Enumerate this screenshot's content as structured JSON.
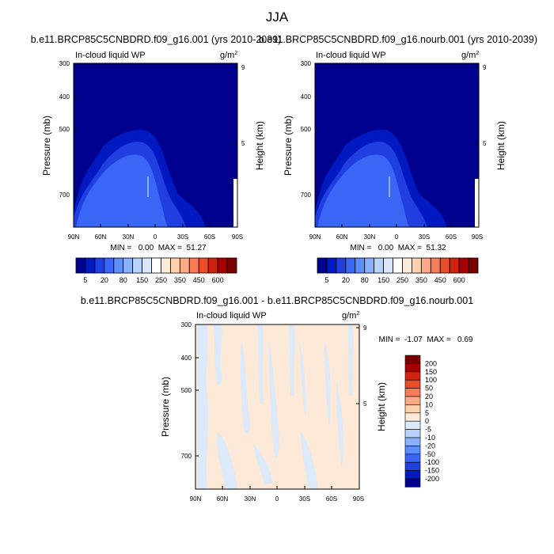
{
  "page_title": "JJA",
  "colors": {
    "blue_ramp": [
      "#00008f",
      "#0019c0",
      "#1f3fe0",
      "#3a66f5",
      "#5d8cfb",
      "#8bb0fb",
      "#b9d2fc",
      "#dbe8fb"
    ],
    "red_ramp": [
      "#fdebd9",
      "#fdd0b0",
      "#fcab86",
      "#f87c55",
      "#ec4d28",
      "#d12210",
      "#a60000",
      "#7a0000"
    ],
    "diff_pos": "#fde9d7",
    "diff_neg": "#dbe9f8"
  },
  "chart_data": [
    {
      "type": "heatmap",
      "title": "b.e11.BRCP85C5CNBDRD.f09_g16.001 (yrs 2010-2039)",
      "left_label": "In-cloud liquid WP",
      "units_label": "g/m",
      "units_sup": "2",
      "ylabel": "Pressure (mb)",
      "y2label": "Height (km)",
      "x_ticks": [
        "90N",
        "60N",
        "30N",
        "0",
        "30S",
        "60S",
        "90S"
      ],
      "y_ticks": [
        "300",
        "400",
        "500",
        "700"
      ],
      "y2_ticks": [
        "9",
        "5"
      ],
      "stats": "MIN =   0.00  MAX =  51.27",
      "colorbar_labels": [
        "5",
        "20",
        "80",
        "150",
        "250",
        "350",
        "450",
        "600"
      ]
    },
    {
      "type": "heatmap",
      "title": "b.e11.BRCP85C5CNBDRD.f09_g16.nourb.001 (yrs 2010-2039)",
      "left_label": "In-cloud liquid WP",
      "units_label": "g/m",
      "units_sup": "2",
      "ylabel": "Pressure (mb)",
      "y2label": "Height (km)",
      "x_ticks": [
        "90N",
        "60N",
        "30N",
        "0",
        "30S",
        "60S",
        "90S"
      ],
      "y_ticks": [
        "300",
        "400",
        "500",
        "700"
      ],
      "y2_ticks": [
        "9",
        "5"
      ],
      "stats": "MIN =   0.00  MAX =  51.32",
      "colorbar_labels": [
        "5",
        "20",
        "80",
        "150",
        "250",
        "350",
        "450",
        "600"
      ]
    },
    {
      "type": "heatmap",
      "title": "b.e11.BRCP85C5CNBDRD.f09_g16.001 - b.e11.BRCP85C5CNBDRD.f09_g16.nourb.001",
      "left_label": "In-cloud liquid WP",
      "units_label": "g/m",
      "units_sup": "2",
      "ylabel": "Pressure (mb)",
      "y2label": "Height (km)",
      "x_ticks": [
        "90N",
        "60N",
        "30N",
        "0",
        "30S",
        "60S",
        "90S"
      ],
      "y_ticks": [
        "300",
        "400",
        "500",
        "700"
      ],
      "y2_ticks": [
        "9",
        "5"
      ],
      "stats": "MIN =  -1.07  MAX =   0.69",
      "colorbar_labels": [
        "200",
        "150",
        "100",
        "50",
        "20",
        "10",
        "5",
        "0",
        "-5",
        "-10",
        "-20",
        "-50",
        "-100",
        "-150",
        "-200"
      ]
    }
  ]
}
